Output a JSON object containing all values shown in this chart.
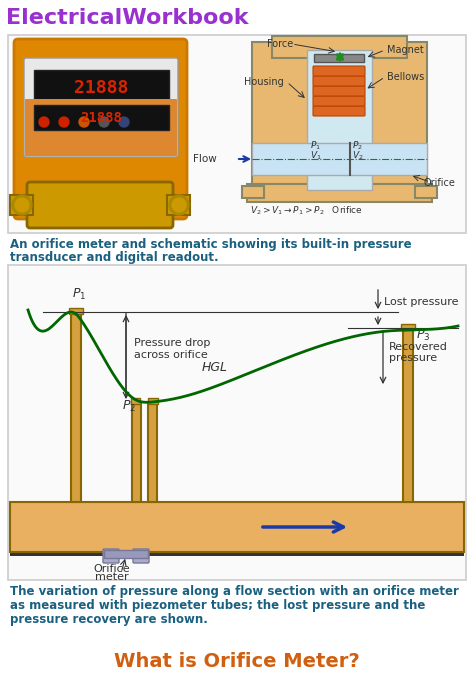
{
  "title_text": "ElectricalWorkbook",
  "title_color": "#9b30d0",
  "bg_color": "#ffffff",
  "caption1_line1": "An orifice meter and schematic showing its built-in pressure",
  "caption1_line2": "transducer and digital readout.",
  "caption1_color": "#1a6080",
  "caption2_line1": "The variation of pressure along a flow section with an orifice meter",
  "caption2_line2": "as measured with piezometer tubes; the lost pressure and the",
  "caption2_line3": "pressure recovery are shown.",
  "caption2_color": "#1a6080",
  "bottom_title": "What is Orifice Meter?",
  "bottom_title_color": "#d06010",
  "panel1_bg": "#ffffff",
  "panel1_border": "#cccccc",
  "panel2_bg": "#ffffff",
  "panel2_border": "#cccccc",
  "housing_fill": "#e8b870",
  "housing_border": "#888866",
  "chamber_fill": "#b8d8e8",
  "pipe_fill": "#e8b870",
  "pipe_dark": "#c09030",
  "pipe_border": "#666644",
  "tube_fill": "#d4a040",
  "tube_border": "#886600",
  "hgl_color": "#006600",
  "flow_color": "#1a3aaa",
  "annotation_color": "#333333",
  "lost_arrow_color": "#333333",
  "green_arrow": "#228b22"
}
